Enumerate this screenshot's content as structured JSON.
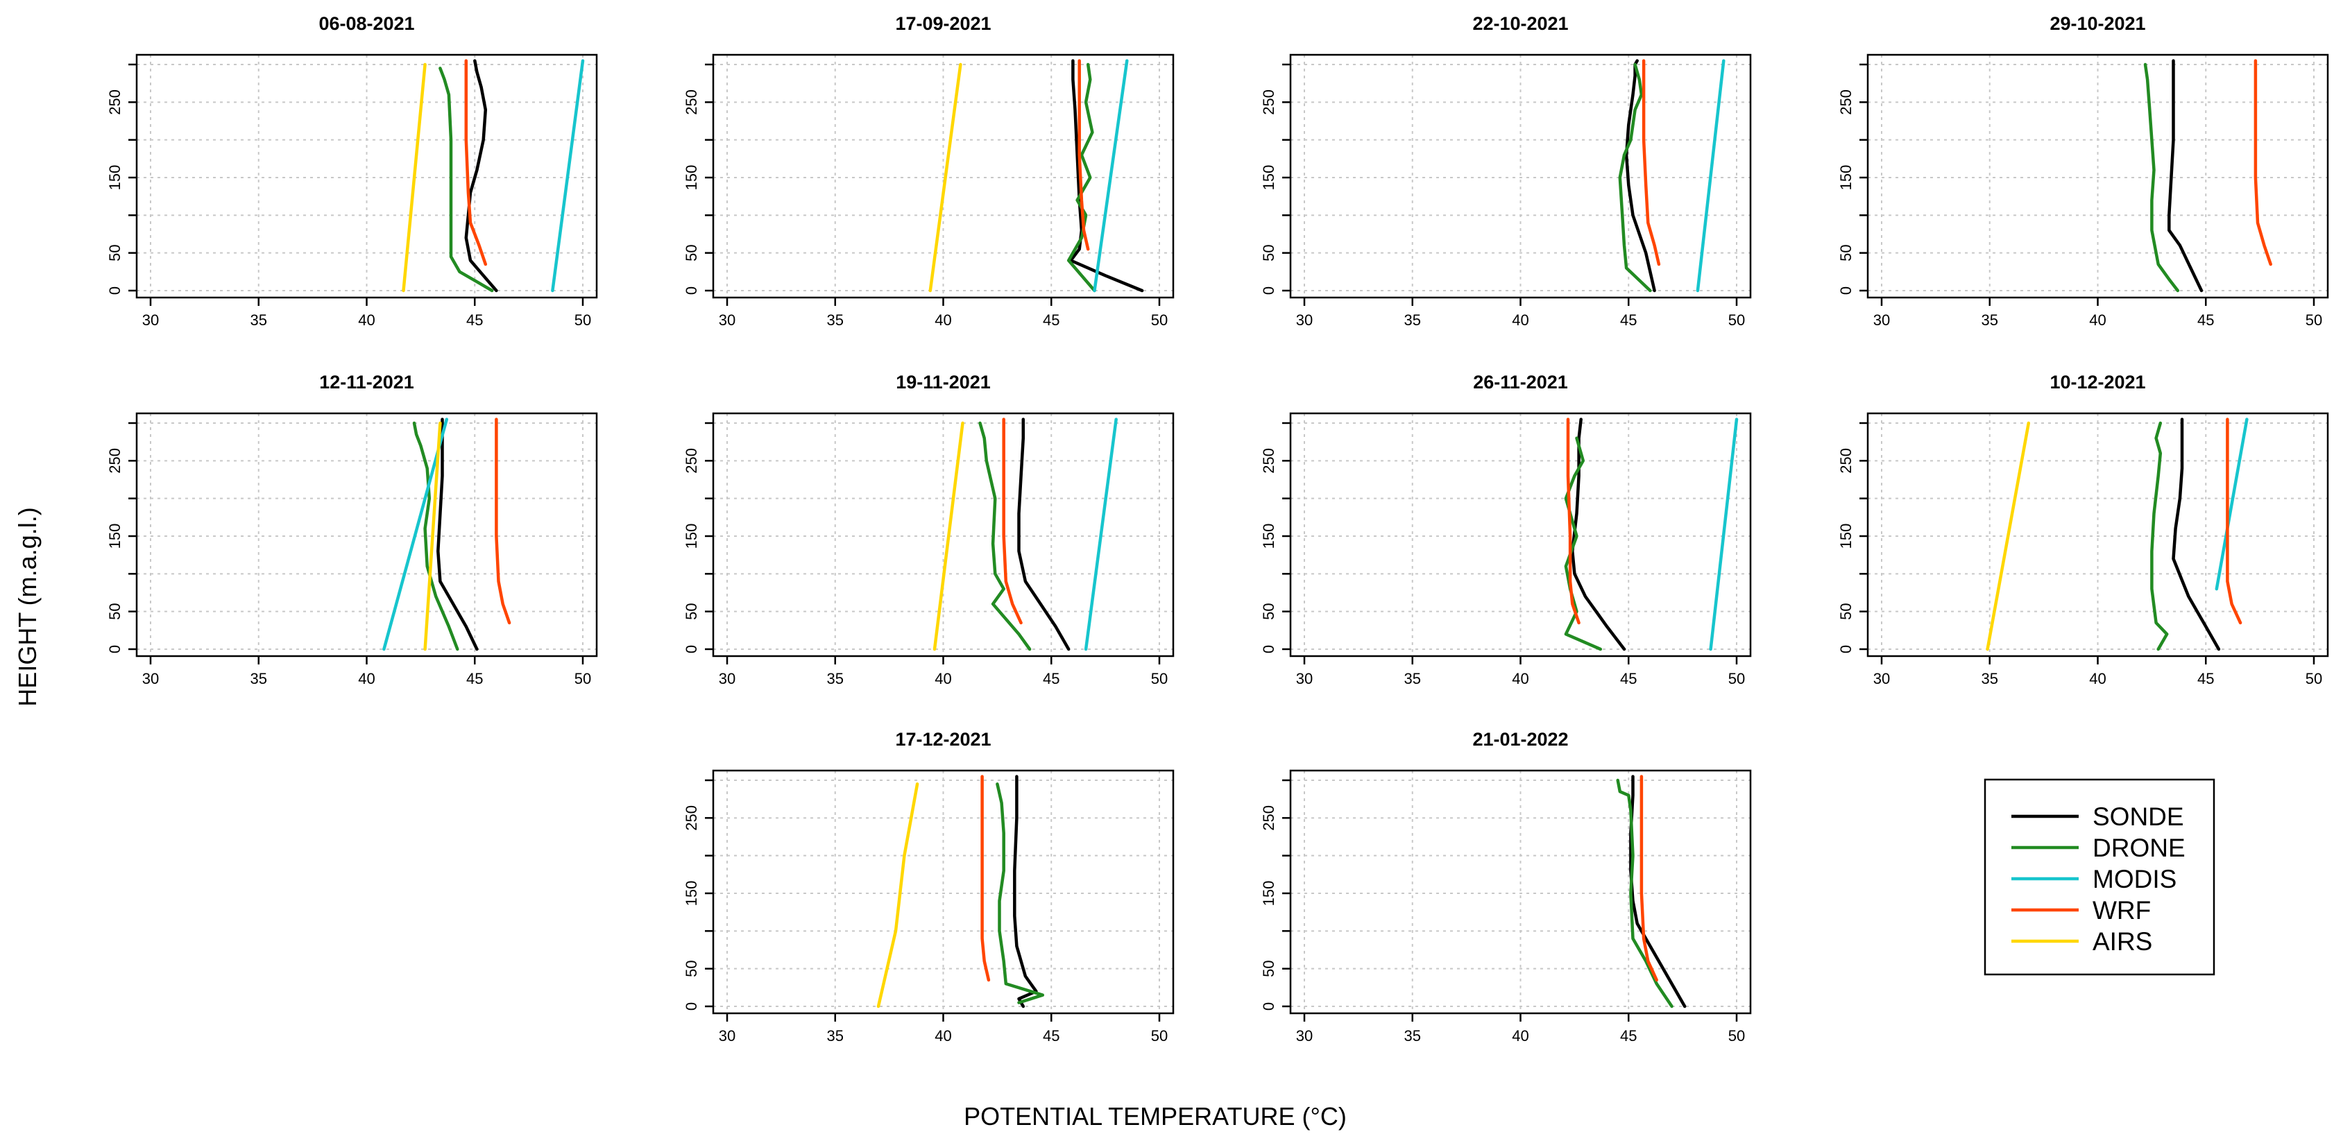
{
  "figure": {
    "xlabel": "POTENTIAL TEMPERATURE (°C)",
    "ylabel": "HEIGHT (m.a.g.l.)"
  },
  "colors": {
    "SONDE": "#000000",
    "DRONE": "#228b22",
    "MODIS": "#17c5cd",
    "WRF": "#ff4500",
    "AIRS": "#ffd700"
  },
  "legend": {
    "entries": [
      "SONDE",
      "DRONE",
      "MODIS",
      "WRF",
      "AIRS"
    ]
  },
  "chart_data": [
    {
      "type": "line",
      "title": "06-08-2021",
      "xlim": [
        30,
        50
      ],
      "ylim": [
        0,
        300
      ],
      "xticks": [
        30,
        35,
        40,
        45,
        50
      ],
      "yticks": [
        0,
        50,
        150,
        250
      ],
      "series": [
        {
          "name": "SONDE",
          "x": [
            46.0,
            45.4,
            44.8,
            44.6,
            44.7,
            44.8,
            45.1,
            45.4,
            45.5,
            45.3,
            45.1,
            45.0
          ],
          "y": [
            0,
            20,
            40,
            70,
            100,
            130,
            160,
            200,
            240,
            270,
            290,
            305
          ]
        },
        {
          "name": "DRONE",
          "x": [
            45.8,
            45.2,
            44.3,
            43.9,
            43.9,
            43.9,
            43.9,
            43.8,
            43.6,
            43.4
          ],
          "y": [
            0,
            10,
            25,
            45,
            100,
            150,
            200,
            260,
            280,
            295
          ]
        },
        {
          "name": "MODIS",
          "x": [
            48.6,
            50.0
          ],
          "y": [
            0,
            305
          ]
        },
        {
          "name": "WRF",
          "x": [
            45.5,
            45.2,
            44.8,
            44.7,
            44.6,
            44.6,
            44.6
          ],
          "y": [
            35,
            60,
            90,
            130,
            200,
            260,
            305
          ]
        },
        {
          "name": "AIRS",
          "x": [
            41.7,
            42.7
          ],
          "y": [
            0,
            300
          ]
        }
      ]
    },
    {
      "type": "line",
      "title": "17-09-2021",
      "xlim": [
        30,
        50
      ],
      "ylim": [
        0,
        300
      ],
      "xticks": [
        30,
        35,
        40,
        45,
        50
      ],
      "yticks": [
        0,
        50,
        150,
        250
      ],
      "series": [
        {
          "name": "SONDE",
          "x": [
            49.2,
            47.5,
            45.9,
            46.3,
            46.4,
            46.3,
            46.2,
            46.1,
            46.0,
            46.0
          ],
          "y": [
            0,
            20,
            40,
            55,
            80,
            120,
            180,
            240,
            280,
            305
          ]
        },
        {
          "name": "DRONE",
          "x": [
            47.0,
            45.8,
            46.4,
            46.6,
            46.2,
            46.8,
            46.4,
            46.9,
            46.6,
            46.8,
            46.7
          ],
          "y": [
            0,
            40,
            70,
            100,
            120,
            150,
            180,
            210,
            250,
            280,
            300
          ]
        },
        {
          "name": "MODIS",
          "x": [
            47.0,
            48.5
          ],
          "y": [
            0,
            305
          ]
        },
        {
          "name": "WRF",
          "x": [
            46.7,
            46.5,
            46.4,
            46.3,
            46.3,
            46.3
          ],
          "y": [
            55,
            80,
            120,
            180,
            240,
            305
          ]
        },
        {
          "name": "AIRS",
          "x": [
            39.4,
            40.8
          ],
          "y": [
            0,
            300
          ]
        }
      ]
    },
    {
      "type": "line",
      "title": "22-10-2021",
      "xlim": [
        30,
        50
      ],
      "ylim": [
        0,
        300
      ],
      "xticks": [
        30,
        35,
        40,
        45,
        50
      ],
      "yticks": [
        0,
        50,
        150,
        250
      ],
      "series": [
        {
          "name": "SONDE",
          "x": [
            46.2,
            45.8,
            45.2,
            45.0,
            44.9,
            45.0,
            45.2,
            45.3,
            45.3,
            45.4
          ],
          "y": [
            0,
            50,
            100,
            140,
            180,
            220,
            260,
            285,
            300,
            305
          ]
        },
        {
          "name": "DRONE",
          "x": [
            46.0,
            44.9,
            44.8,
            44.6,
            44.8,
            45.1,
            45.3,
            45.6,
            45.5,
            45.3
          ],
          "y": [
            0,
            30,
            60,
            150,
            180,
            200,
            240,
            260,
            280,
            300
          ]
        },
        {
          "name": "MODIS",
          "x": [
            48.2,
            49.4
          ],
          "y": [
            0,
            305
          ]
        },
        {
          "name": "WRF",
          "x": [
            46.4,
            46.2,
            45.9,
            45.8,
            45.7,
            45.7,
            45.7
          ],
          "y": [
            35,
            60,
            90,
            140,
            200,
            260,
            305
          ]
        }
      ]
    },
    {
      "type": "line",
      "title": "29-10-2021",
      "xlim": [
        30,
        50
      ],
      "ylim": [
        0,
        300
      ],
      "xticks": [
        30,
        35,
        40,
        45,
        50
      ],
      "yticks": [
        0,
        50,
        150,
        250
      ],
      "series": [
        {
          "name": "SONDE",
          "x": [
            44.8,
            44.3,
            43.8,
            43.3,
            43.3,
            43.4,
            43.5,
            43.5,
            43.5
          ],
          "y": [
            0,
            30,
            60,
            80,
            100,
            150,
            200,
            260,
            305
          ]
        },
        {
          "name": "DRONE",
          "x": [
            43.7,
            43.3,
            42.8,
            42.5,
            42.5,
            42.6,
            42.5,
            42.4,
            42.3,
            42.2
          ],
          "y": [
            0,
            15,
            35,
            80,
            120,
            160,
            200,
            240,
            280,
            300
          ]
        },
        {
          "name": "WRF",
          "x": [
            48.0,
            47.7,
            47.4,
            47.3,
            47.3,
            47.3
          ],
          "y": [
            35,
            60,
            90,
            150,
            230,
            305
          ]
        }
      ]
    },
    {
      "type": "line",
      "title": "12-11-2021",
      "xlim": [
        30,
        50
      ],
      "ylim": [
        0,
        300
      ],
      "xticks": [
        30,
        35,
        40,
        45,
        50
      ],
      "yticks": [
        0,
        50,
        150,
        250
      ],
      "series": [
        {
          "name": "SONDE",
          "x": [
            45.1,
            44.6,
            44.0,
            43.4,
            43.3,
            43.4,
            43.5,
            43.5,
            43.5
          ],
          "y": [
            0,
            30,
            60,
            90,
            130,
            180,
            230,
            280,
            305
          ]
        },
        {
          "name": "DRONE",
          "x": [
            44.2,
            43.8,
            43.2,
            42.8,
            42.7,
            42.9,
            42.8,
            42.5,
            42.3,
            42.2
          ],
          "y": [
            0,
            30,
            70,
            110,
            160,
            200,
            240,
            270,
            285,
            300
          ]
        },
        {
          "name": "MODIS",
          "x": [
            40.8,
            43.7
          ],
          "y": [
            0,
            305
          ]
        },
        {
          "name": "WRF",
          "x": [
            46.6,
            46.3,
            46.1,
            46.0,
            46.0,
            46.0
          ],
          "y": [
            35,
            60,
            90,
            150,
            230,
            305
          ]
        },
        {
          "name": "AIRS",
          "x": [
            42.7,
            43.4
          ],
          "y": [
            0,
            300
          ]
        }
      ]
    },
    {
      "type": "line",
      "title": "19-11-2021",
      "xlim": [
        30,
        50
      ],
      "ylim": [
        0,
        300
      ],
      "xticks": [
        30,
        35,
        40,
        45,
        50
      ],
      "yticks": [
        0,
        50,
        150,
        250
      ],
      "series": [
        {
          "name": "SONDE",
          "x": [
            45.8,
            45.2,
            44.5,
            43.8,
            43.5,
            43.5,
            43.6,
            43.7,
            43.7
          ],
          "y": [
            0,
            30,
            60,
            90,
            130,
            180,
            230,
            280,
            305
          ]
        },
        {
          "name": "DRONE",
          "x": [
            44.0,
            43.5,
            42.3,
            42.8,
            42.4,
            42.3,
            42.4,
            42.0,
            41.9,
            41.7
          ],
          "y": [
            0,
            20,
            60,
            80,
            100,
            140,
            200,
            250,
            280,
            300
          ]
        },
        {
          "name": "MODIS",
          "x": [
            46.6,
            48.0
          ],
          "y": [
            0,
            305
          ]
        },
        {
          "name": "WRF",
          "x": [
            43.6,
            43.2,
            42.9,
            42.8,
            42.8,
            42.8
          ],
          "y": [
            35,
            60,
            90,
            150,
            230,
            305
          ]
        },
        {
          "name": "AIRS",
          "x": [
            39.6,
            40.9
          ],
          "y": [
            0,
            300
          ]
        }
      ]
    },
    {
      "type": "line",
      "title": "26-11-2021",
      "xlim": [
        30,
        50
      ],
      "ylim": [
        0,
        300
      ],
      "xticks": [
        30,
        35,
        40,
        45,
        50
      ],
      "yticks": [
        0,
        50,
        150,
        250
      ],
      "series": [
        {
          "name": "SONDE",
          "x": [
            44.8,
            44.0,
            43.0,
            42.5,
            42.4,
            42.6,
            42.7,
            42.7,
            42.8
          ],
          "y": [
            0,
            30,
            70,
            100,
            130,
            180,
            230,
            280,
            305
          ]
        },
        {
          "name": "DRONE",
          "x": [
            43.7,
            42.1,
            42.6,
            42.3,
            42.1,
            42.6,
            42.1,
            42.5,
            42.9,
            42.6
          ],
          "y": [
            0,
            20,
            50,
            80,
            110,
            150,
            200,
            230,
            250,
            280
          ]
        },
        {
          "name": "MODIS",
          "x": [
            48.8,
            50.0
          ],
          "y": [
            0,
            305
          ]
        },
        {
          "name": "WRF",
          "x": [
            42.7,
            42.4,
            42.3,
            42.3,
            42.2,
            42.2
          ],
          "y": [
            35,
            60,
            90,
            150,
            230,
            305
          ]
        }
      ]
    },
    {
      "type": "line",
      "title": "10-12-2021",
      "xlim": [
        30,
        50
      ],
      "ylim": [
        0,
        300
      ],
      "xticks": [
        30,
        35,
        40,
        45,
        50
      ],
      "yticks": [
        0,
        50,
        150,
        250
      ],
      "series": [
        {
          "name": "SONDE",
          "x": [
            45.6,
            45.0,
            44.2,
            43.5,
            43.6,
            43.8,
            43.9,
            43.9,
            43.9
          ],
          "y": [
            0,
            30,
            70,
            120,
            160,
            200,
            240,
            280,
            305
          ]
        },
        {
          "name": "DRONE",
          "x": [
            42.8,
            43.2,
            42.7,
            42.5,
            42.5,
            42.6,
            42.8,
            42.9,
            42.7,
            42.9
          ],
          "y": [
            0,
            20,
            35,
            80,
            130,
            180,
            230,
            260,
            280,
            300
          ]
        },
        {
          "name": "MODIS",
          "x": [
            45.5,
            46.9
          ],
          "y": [
            80,
            305
          ]
        },
        {
          "name": "WRF",
          "x": [
            46.6,
            46.2,
            46.0,
            46.0,
            46.0,
            46.0
          ],
          "y": [
            35,
            60,
            90,
            150,
            230,
            305
          ]
        },
        {
          "name": "AIRS",
          "x": [
            34.9,
            36.8
          ],
          "y": [
            0,
            300
          ]
        }
      ]
    },
    {
      "type": "line",
      "title": "17-12-2021",
      "xlim": [
        30,
        50
      ],
      "ylim": [
        0,
        300
      ],
      "xticks": [
        30,
        35,
        40,
        45,
        50
      ],
      "yticks": [
        0,
        50,
        150,
        250
      ],
      "series": [
        {
          "name": "SONDE",
          "x": [
            43.7,
            43.5,
            44.3,
            43.8,
            43.4,
            43.3,
            43.3,
            43.4,
            43.4
          ],
          "y": [
            0,
            10,
            20,
            40,
            80,
            120,
            180,
            250,
            305
          ]
        },
        {
          "name": "DRONE",
          "x": [
            43.5,
            44.6,
            42.9,
            42.8,
            42.6,
            42.6,
            42.8,
            42.8,
            42.7,
            42.5
          ],
          "y": [
            5,
            15,
            30,
            60,
            100,
            140,
            180,
            230,
            270,
            295
          ]
        },
        {
          "name": "WRF",
          "x": [
            42.1,
            41.9,
            41.8,
            41.8,
            41.8,
            41.8
          ],
          "y": [
            35,
            60,
            90,
            150,
            230,
            305
          ]
        },
        {
          "name": "AIRS",
          "x": [
            37.0,
            37.8,
            38.2,
            38.8
          ],
          "y": [
            0,
            100,
            200,
            295
          ]
        }
      ]
    },
    {
      "type": "line",
      "title": "21-01-2022",
      "xlim": [
        30,
        50
      ],
      "ylim": [
        0,
        300
      ],
      "xticks": [
        30,
        35,
        40,
        45,
        50
      ],
      "yticks": [
        0,
        50,
        150,
        250
      ],
      "series": [
        {
          "name": "SONDE",
          "x": [
            47.6,
            46.8,
            46.0,
            45.4,
            45.2,
            45.1,
            45.1,
            45.2,
            45.2
          ],
          "y": [
            0,
            40,
            80,
            110,
            140,
            180,
            230,
            280,
            305
          ]
        },
        {
          "name": "DRONE",
          "x": [
            47.0,
            46.3,
            45.8,
            45.2,
            45.1,
            45.2,
            45.1,
            45.0,
            44.6,
            44.5
          ],
          "y": [
            0,
            30,
            60,
            90,
            150,
            200,
            260,
            280,
            285,
            300
          ]
        },
        {
          "name": "WRF",
          "x": [
            46.3,
            45.9,
            45.7,
            45.6,
            45.6,
            45.6
          ],
          "y": [
            35,
            60,
            90,
            150,
            230,
            305
          ]
        }
      ]
    }
  ]
}
